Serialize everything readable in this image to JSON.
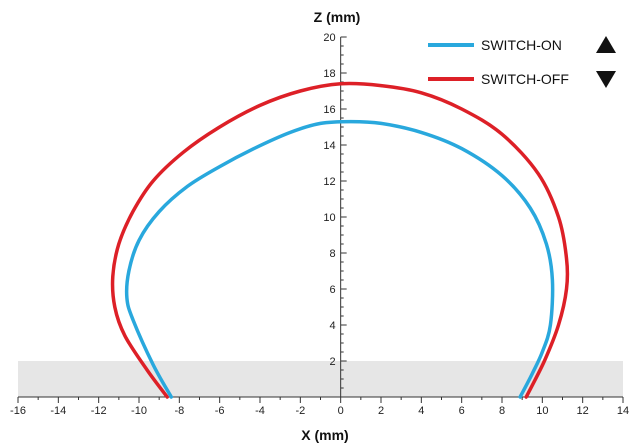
{
  "chart_data": {
    "type": "line",
    "title": "",
    "xlabel": "X (mm)",
    "ylabel": "Z (mm)",
    "xlim": [
      -16,
      14
    ],
    "ylim": [
      0,
      20
    ],
    "x_ticks": [
      -16,
      -14,
      -12,
      -10,
      -8,
      -6,
      -4,
      -2,
      0,
      2,
      4,
      6,
      8,
      10,
      12,
      14
    ],
    "y_ticks": [
      2,
      4,
      6,
      8,
      10,
      12,
      14,
      16,
      18,
      20
    ],
    "grid": false,
    "legend_position": "top-right",
    "shaded_band": {
      "y_from": 0,
      "y_to": 2,
      "color": "#e6e6e6"
    },
    "series": [
      {
        "name": "SWITCH-ON",
        "color": "#29a8dd",
        "marker": "up-triangle",
        "points": [
          [
            -8.4,
            0.0
          ],
          [
            -9.3,
            1.8
          ],
          [
            -10.3,
            4.3
          ],
          [
            -10.6,
            5.5
          ],
          [
            -10.5,
            7.0
          ],
          [
            -10.0,
            8.7
          ],
          [
            -9.0,
            10.3
          ],
          [
            -7.6,
            11.7
          ],
          [
            -6.0,
            12.8
          ],
          [
            -4.3,
            13.8
          ],
          [
            -2.5,
            14.7
          ],
          [
            -1.0,
            15.2
          ],
          [
            0.5,
            15.3
          ],
          [
            2.0,
            15.2
          ],
          [
            4.0,
            14.7
          ],
          [
            6.0,
            13.8
          ],
          [
            8.0,
            12.3
          ],
          [
            9.4,
            10.5
          ],
          [
            10.2,
            8.5
          ],
          [
            10.5,
            6.5
          ],
          [
            10.4,
            4.0
          ],
          [
            10.0,
            2.5
          ],
          [
            9.5,
            1.3
          ],
          [
            8.9,
            0.0
          ]
        ]
      },
      {
        "name": "SWITCH-OFF",
        "color": "#dd2027",
        "marker": "down-triangle",
        "points": [
          [
            -8.6,
            0.0
          ],
          [
            -9.6,
            1.5
          ],
          [
            -10.7,
            3.4
          ],
          [
            -11.2,
            5.0
          ],
          [
            -11.3,
            6.7
          ],
          [
            -11.0,
            8.5
          ],
          [
            -10.3,
            10.3
          ],
          [
            -9.3,
            12.0
          ],
          [
            -7.8,
            13.6
          ],
          [
            -6.0,
            15.0
          ],
          [
            -4.0,
            16.2
          ],
          [
            -2.0,
            17.0
          ],
          [
            0.0,
            17.4
          ],
          [
            2.0,
            17.3
          ],
          [
            4.0,
            16.9
          ],
          [
            6.0,
            16.0
          ],
          [
            8.0,
            14.6
          ],
          [
            9.8,
            12.4
          ],
          [
            10.8,
            10.0
          ],
          [
            11.2,
            7.7
          ],
          [
            11.2,
            6.0
          ],
          [
            10.8,
            4.0
          ],
          [
            10.1,
            2.0
          ],
          [
            9.2,
            0.0
          ]
        ]
      }
    ]
  }
}
